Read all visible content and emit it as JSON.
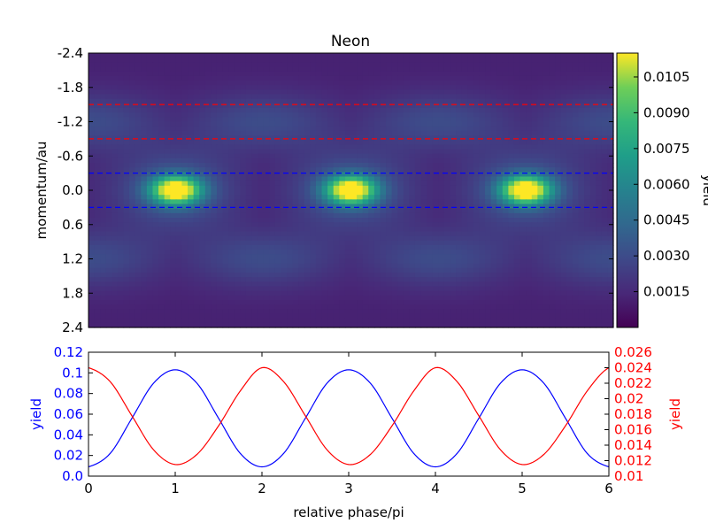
{
  "chart_data": [
    {
      "type": "heatmap",
      "title": "Neon",
      "xlabel": "",
      "ylabel": "momentum/au",
      "xlim": [
        0,
        6
      ],
      "ylim": [
        -2.4,
        2.4
      ],
      "y_inverted": true,
      "y_ticks": [
        "-2.4",
        "-1.8",
        "-1.2",
        "-0.6",
        "0.0",
        "0.6",
        "1.2",
        "1.8",
        "2.4"
      ],
      "colormap": "viridis",
      "colorbar": {
        "label": "yield",
        "range": [
          0.0,
          0.0115
        ],
        "ticks": [
          "0.0015",
          "0.0030",
          "0.0045",
          "0.0060",
          "0.0075",
          "0.0090",
          "0.0105"
        ]
      },
      "field_model": {
        "background": 0.0012,
        "components": [
          {
            "amp": 0.0105,
            "x_centers": [
              1,
              3,
              5
            ],
            "x_period": 2,
            "y_center": 0.0,
            "y_sigma": 0.17,
            "x_sigma": 0.2
          },
          {
            "amp": 0.0025,
            "x_centers": [
              1,
              3,
              5
            ],
            "x_period": 2,
            "y_center": 0.0,
            "y_sigma": 0.5,
            "x_sigma": 0.5
          },
          {
            "amp": 0.0018,
            "x_centers": [
              0,
              2,
              4,
              6
            ],
            "x_period": 2,
            "y_center": -1.2,
            "y_sigma": 0.35,
            "x_sigma": 0.6
          },
          {
            "amp": 0.0018,
            "x_centers": [
              0,
              2,
              4,
              6
            ],
            "x_period": 2,
            "y_center": 1.2,
            "y_sigma": 0.35,
            "x_sigma": 0.6
          }
        ]
      },
      "reference_lines": [
        {
          "y": -1.5,
          "color": "#ff0000",
          "style": "dashed"
        },
        {
          "y": -0.9,
          "color": "#ff0000",
          "style": "dashed"
        },
        {
          "y": -0.3,
          "color": "#0000ff",
          "style": "dashed"
        },
        {
          "y": 0.3,
          "color": "#0000ff",
          "style": "dashed"
        }
      ],
      "grid": false
    },
    {
      "type": "line",
      "xlabel": "relative phase/pi",
      "xlim": [
        0,
        6
      ],
      "x_ticks": [
        "0",
        "1",
        "2",
        "3",
        "4",
        "5",
        "6"
      ],
      "grid": false,
      "left_axis": {
        "label": "yield",
        "color": "#0000ff",
        "ylim": [
          0.0,
          0.12
        ],
        "ticks": [
          "0.0",
          "0.02",
          "0.04",
          "0.06",
          "0.08",
          "0.1",
          "0.12"
        ]
      },
      "right_axis": {
        "label": "yield",
        "color": "#ff0000",
        "ylim": [
          0.01,
          0.026
        ],
        "ticks": [
          "0.01",
          "0.012",
          "0.014",
          "0.016",
          "0.018",
          "0.02",
          "0.022",
          "0.024",
          "0.026"
        ]
      },
      "series": [
        {
          "axis": "left",
          "color": "#0000ff",
          "x": [
            0,
            0.25,
            0.5,
            0.75,
            1,
            1.25,
            1.5,
            1.75,
            2,
            2.25,
            2.5,
            2.75,
            3,
            3.25,
            3.5,
            3.75,
            4,
            4.25,
            4.5,
            4.75,
            5,
            5.25,
            5.5,
            5.75,
            6
          ],
          "values": [
            0.009,
            0.022,
            0.056,
            0.09,
            0.103,
            0.09,
            0.056,
            0.022,
            0.009,
            0.022,
            0.056,
            0.09,
            0.103,
            0.09,
            0.056,
            0.022,
            0.009,
            0.022,
            0.056,
            0.09,
            0.103,
            0.09,
            0.056,
            0.022,
            0.009
          ]
        },
        {
          "axis": "right",
          "color": "#ff0000",
          "x": [
            0,
            0.25,
            0.5,
            0.75,
            1,
            1.25,
            1.5,
            1.75,
            2,
            2.25,
            2.5,
            2.75,
            3,
            3.25,
            3.5,
            3.75,
            4,
            4.25,
            4.5,
            4.75,
            5,
            5.25,
            5.5,
            5.75,
            6
          ],
          "values": [
            0.024,
            0.0222,
            0.0178,
            0.0134,
            0.0115,
            0.0128,
            0.0165,
            0.021,
            0.024,
            0.0222,
            0.0178,
            0.0134,
            0.0115,
            0.0128,
            0.0165,
            0.021,
            0.024,
            0.0222,
            0.0178,
            0.0134,
            0.0115,
            0.0128,
            0.0165,
            0.021,
            0.024
          ]
        }
      ]
    }
  ]
}
